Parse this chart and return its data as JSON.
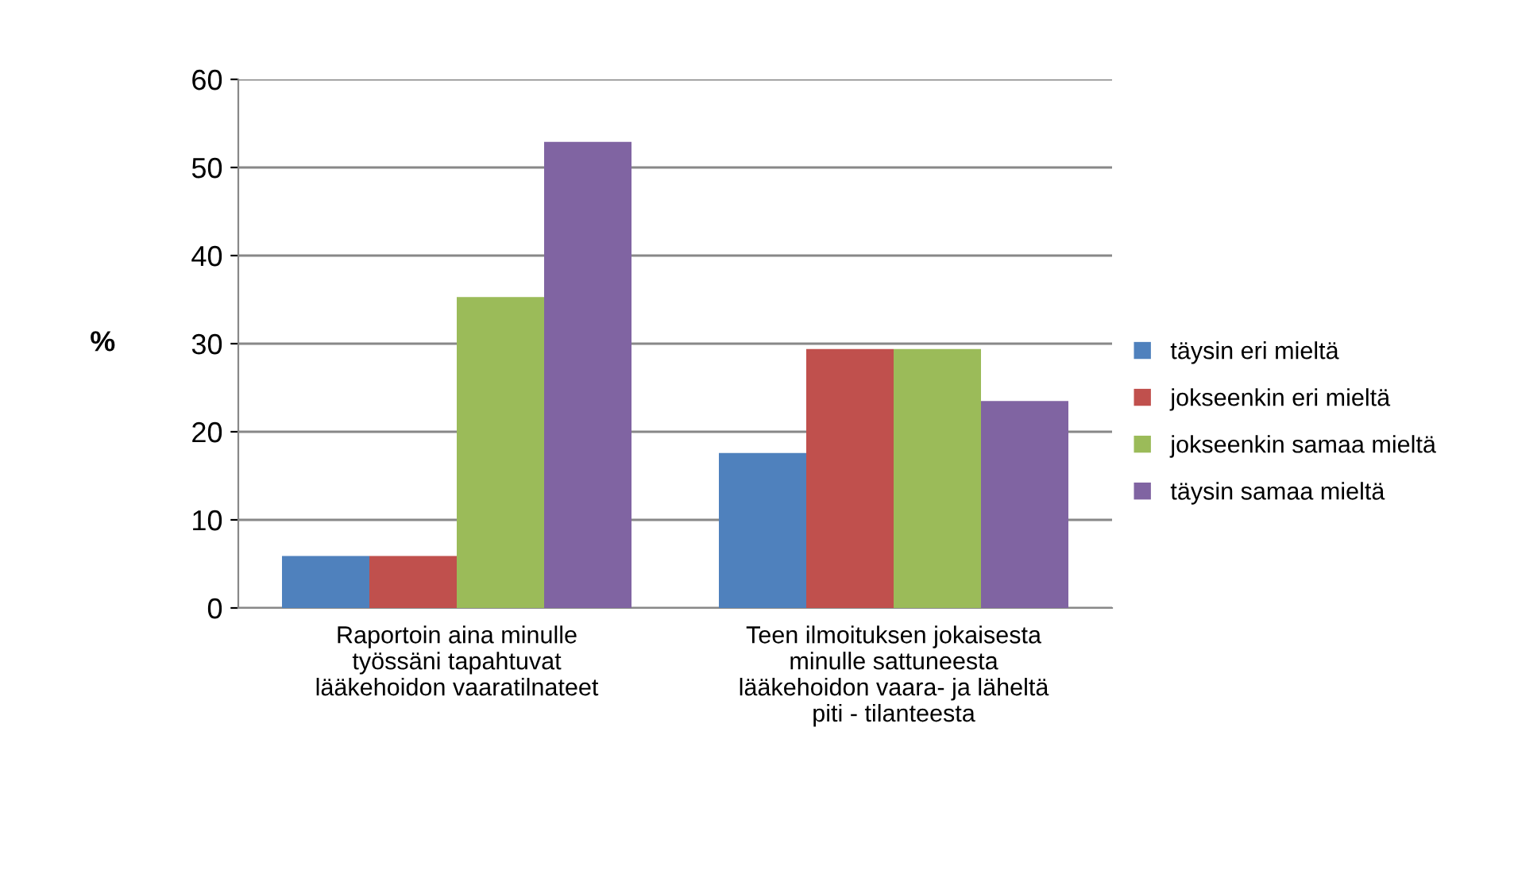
{
  "chart_data": {
    "type": "bar",
    "ylabel": "%",
    "categories": [
      "Raportoin aina minulle\ntyössäni tapahtuvat\nlääkehoidon vaaratilnateet",
      "Teen ilmoituksen jokaisesta\nminulle sattuneesta\nlääkehoidon vaara- ja läheltä\npiti - tilanteesta"
    ],
    "series": [
      {
        "name": "täysin eri mieltä",
        "color": "#4f81bd",
        "values": [
          5.9,
          17.6
        ]
      },
      {
        "name": "jokseenkin eri mieltä",
        "color": "#c0504d",
        "values": [
          5.9,
          29.4
        ]
      },
      {
        "name": "jokseenkin samaa mieltä",
        "color": "#9bbb59",
        "values": [
          35.3,
          29.4
        ]
      },
      {
        "name": "täysin samaa mieltä",
        "color": "#8064a2",
        "values": [
          52.9,
          23.5
        ]
      }
    ],
    "ylim": [
      0,
      60
    ],
    "yticks": [
      0,
      10,
      20,
      30,
      40,
      50,
      60
    ],
    "grid": "y",
    "legend": "right"
  }
}
